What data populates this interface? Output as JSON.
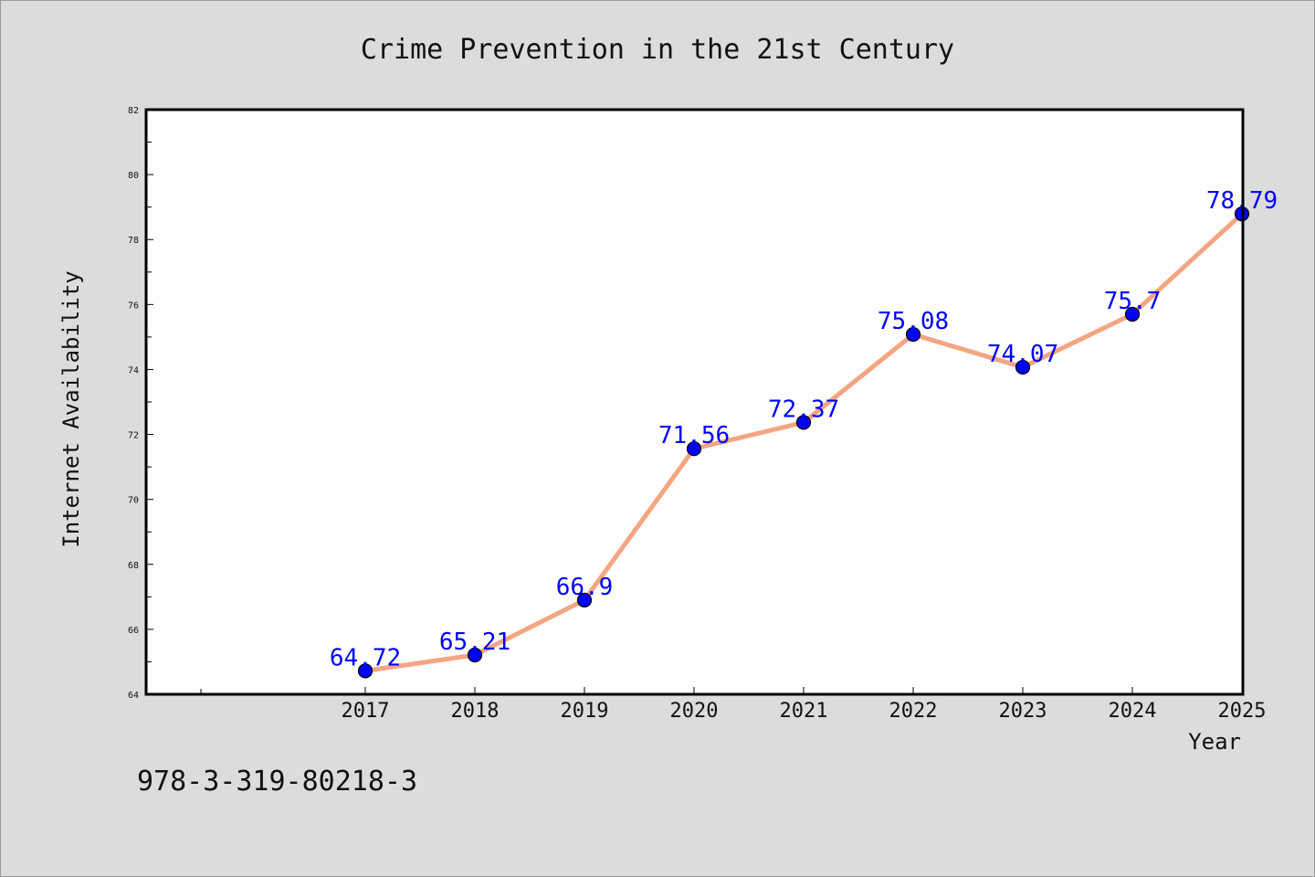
{
  "chart_data": {
    "type": "line",
    "title": "Crime Prevention in the 21st Century",
    "xlabel": "Year",
    "ylabel": "Internet Availability",
    "categories": [
      "2017",
      "2018",
      "2019",
      "2020",
      "2021",
      "2022",
      "2023",
      "2024",
      "2025"
    ],
    "values": [
      64.72,
      65.21,
      66.9,
      71.56,
      72.37,
      75.08,
      74.07,
      75.7,
      78.79
    ],
    "data_labels": [
      "64.72",
      "65.21",
      "66.9",
      "71.56",
      "72.37",
      "75.08",
      "74.07",
      "75.7",
      "78.79"
    ],
    "y_ticks": [
      "64",
      "66",
      "68",
      "70",
      "72",
      "74",
      "76",
      "78",
      "80",
      "82"
    ],
    "ylim": [
      64,
      82
    ],
    "grid": false,
    "legend": "none",
    "line_color": "#f4a582",
    "marker_color": "#0000ff"
  },
  "footer_text": "978-3-319-80218-3"
}
